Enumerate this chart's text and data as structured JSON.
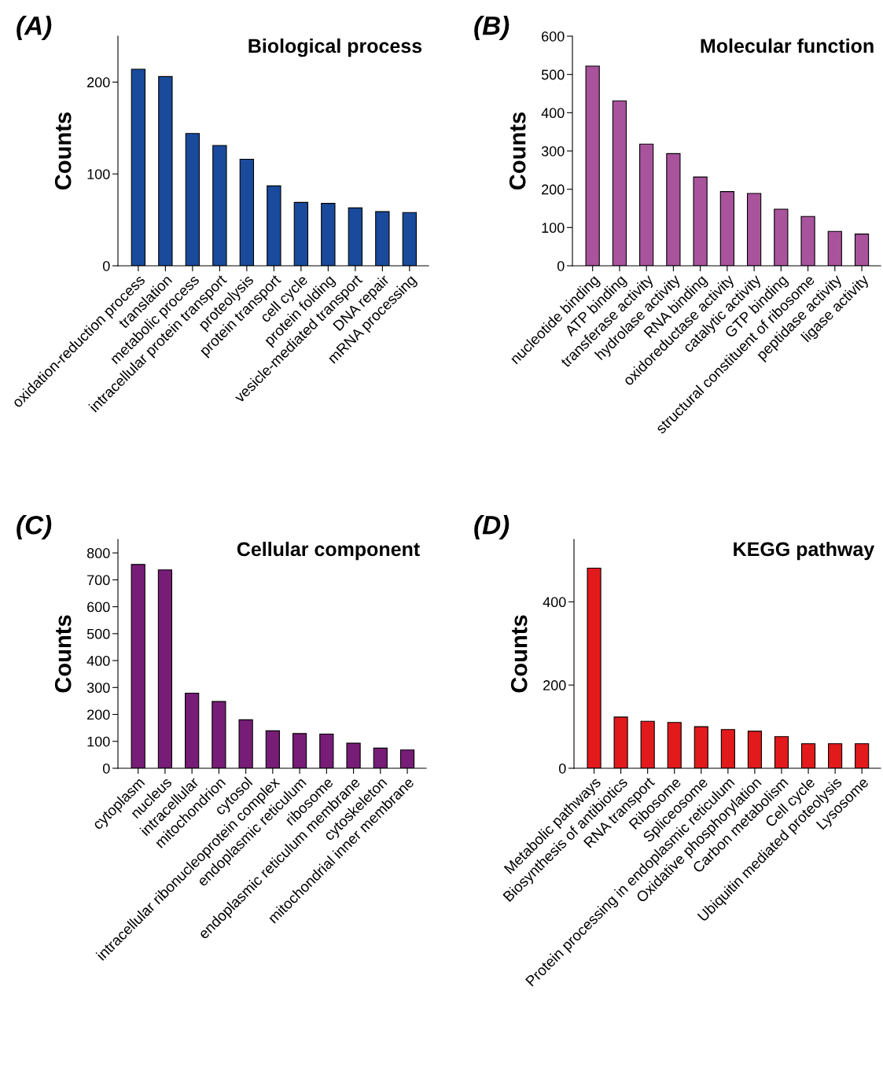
{
  "chart_data": [
    {
      "type": "bar",
      "title": "Biological process",
      "ylabel": "Counts",
      "annotations": [
        "(A)"
      ],
      "color": "#1a4a9c",
      "categories": [
        "oxidation-reduction process",
        "translation",
        "metabolic process",
        "intracellular protein transport",
        "proteolysis",
        "protein transport",
        "cell cycle",
        "protein folding",
        "vesicle-mediated transport",
        "DNA repair",
        "mRNA processing"
      ],
      "values": [
        214,
        206,
        144,
        131,
        116,
        87,
        69,
        68,
        63,
        59,
        58
      ],
      "ylim": [
        0,
        250
      ],
      "yticks": [
        0,
        100,
        200
      ],
      "grid": false,
      "legend": false
    },
    {
      "type": "bar",
      "title": "Molecular function",
      "ylabel": "Counts",
      "annotations": [
        "(B)"
      ],
      "color": "#a9539d",
      "categories": [
        "nucleotide binding",
        "ATP binding",
        "transferase activity",
        "hydrolase activity",
        "RNA binding",
        "oxidoreductase activity",
        "catalytic activity",
        "GTP binding",
        "structural constituent of ribosome",
        "peptidase activity",
        "ligase activity"
      ],
      "values": [
        522,
        431,
        318,
        293,
        232,
        194,
        189,
        148,
        129,
        90,
        83
      ],
      "ylim": [
        0,
        600
      ],
      "yticks": [
        0,
        100,
        200,
        300,
        400,
        500,
        600
      ],
      "grid": false,
      "legend": false
    },
    {
      "type": "bar",
      "title": "Cellular component",
      "ylabel": "Counts",
      "annotations": [
        "(C)"
      ],
      "color": "#771d77",
      "categories": [
        "cytoplasm",
        "nucleus",
        "intracellular",
        "mitochondrion",
        "cytosol",
        "intracellular ribonucleoprotein complex",
        "endoplasmic reticulum",
        "ribosome",
        "endoplasmic reticulum membrane",
        "cytoskeleton",
        "mitochondrial inner membrane"
      ],
      "values": [
        757,
        737,
        279,
        248,
        180,
        139,
        129,
        127,
        93,
        75,
        68
      ],
      "ylim": [
        0,
        850
      ],
      "yticks": [
        0,
        100,
        200,
        300,
        400,
        500,
        600,
        700,
        800
      ],
      "grid": false,
      "legend": false
    },
    {
      "type": "bar",
      "title": "KEGG pathway",
      "ylabel": "Counts",
      "annotations": [
        "(D)"
      ],
      "color": "#e31a1c",
      "categories": [
        "Metabolic pathways",
        "Biosynthesis of antibiotics",
        "RNA transport",
        "Ribosome",
        "Spliceosome",
        "Protein processing in endoplasmic reticulum",
        "Oxidative phosphorylation",
        "Carbon metabolism",
        "Cell cycle",
        "Ubiquitin mediated proteolysis",
        "Lysosome"
      ],
      "values": [
        481,
        123,
        113,
        110,
        100,
        93,
        89,
        76,
        59,
        59,
        59
      ],
      "ylim": [
        0,
        550
      ],
      "yticks": [
        0,
        200,
        400
      ],
      "grid": false,
      "legend": false
    }
  ]
}
